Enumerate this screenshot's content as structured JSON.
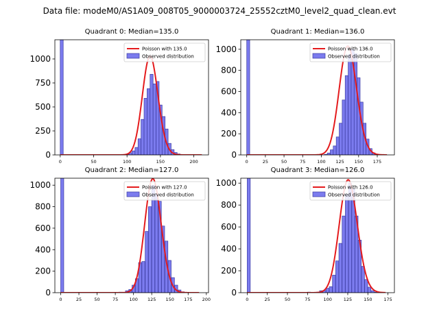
{
  "figure": {
    "suptitle": "Data file: modeM0/AS1A09_008T05_9000003724_25552cztM0_level2_quad_clean.evt"
  },
  "chart_data": [
    {
      "type": "bar",
      "title": "Quadrant 0: Median=135.0",
      "xlim": [
        -8,
        222
      ],
      "ylim": [
        0,
        1200
      ],
      "xticks": [
        0,
        50,
        100,
        150,
        200
      ],
      "yticks": [
        0,
        250,
        500,
        750,
        1000
      ],
      "bin_width": 4.5,
      "hist": [
        {
          "x": 0,
          "count": 1200
        },
        {
          "x": 94,
          "count": 3
        },
        {
          "x": 98.5,
          "count": 8
        },
        {
          "x": 103,
          "count": 22
        },
        {
          "x": 107.5,
          "count": 42
        },
        {
          "x": 112,
          "count": 78
        },
        {
          "x": 116.5,
          "count": 168
        },
        {
          "x": 121,
          "count": 370
        },
        {
          "x": 125.5,
          "count": 590
        },
        {
          "x": 130,
          "count": 690
        },
        {
          "x": 134.5,
          "count": 840
        },
        {
          "x": 139,
          "count": 740
        },
        {
          "x": 143.5,
          "count": 765
        },
        {
          "x": 148,
          "count": 520
        },
        {
          "x": 152.5,
          "count": 400
        },
        {
          "x": 157,
          "count": 270
        },
        {
          "x": 161.5,
          "count": 120
        },
        {
          "x": 166,
          "count": 55
        },
        {
          "x": 170.5,
          "count": 25
        },
        {
          "x": 175,
          "count": 10
        }
      ],
      "poisson": {
        "lambda": 135.0,
        "peak": 1030,
        "x_range": [
          0,
          212
        ]
      },
      "legend": {
        "line": "Poisson with 135.0",
        "bar": "Observed distribution",
        "position": "upper right"
      }
    },
    {
      "type": "bar",
      "title": "Quadrant 1: Median=136.0",
      "xlim": [
        -8,
        198
      ],
      "ylim": [
        0,
        1090
      ],
      "xticks": [
        0,
        25,
        50,
        75,
        100,
        125,
        150,
        175
      ],
      "yticks": [
        0,
        200,
        400,
        600,
        800,
        1000
      ],
      "bin_width": 4.0,
      "hist": [
        {
          "x": 0,
          "count": 1090
        },
        {
          "x": 104,
          "count": 5
        },
        {
          "x": 108,
          "count": 18
        },
        {
          "x": 112,
          "count": 48
        },
        {
          "x": 116,
          "count": 85
        },
        {
          "x": 120,
          "count": 170
        },
        {
          "x": 124,
          "count": 300
        },
        {
          "x": 128,
          "count": 520
        },
        {
          "x": 132,
          "count": 750
        },
        {
          "x": 136,
          "count": 950
        },
        {
          "x": 140,
          "count": 1000
        },
        {
          "x": 144,
          "count": 960
        },
        {
          "x": 148,
          "count": 730
        },
        {
          "x": 152,
          "count": 500
        },
        {
          "x": 156,
          "count": 300
        },
        {
          "x": 160,
          "count": 150
        },
        {
          "x": 164,
          "count": 60
        },
        {
          "x": 168,
          "count": 20
        },
        {
          "x": 172,
          "count": 6
        }
      ],
      "poisson": {
        "lambda": 136.0,
        "peak": 1030,
        "x_range": [
          0,
          188
        ]
      },
      "legend": {
        "line": "Poisson with 136.0",
        "bar": "Observed distribution",
        "position": "upper right"
      }
    },
    {
      "type": "bar",
      "title": "Quadrant 2: Median=127.0",
      "xlim": [
        -8,
        203
      ],
      "ylim": [
        0,
        1065
      ],
      "xticks": [
        0,
        25,
        50,
        75,
        100,
        125,
        150,
        175,
        200
      ],
      "yticks": [
        0,
        200,
        400,
        600,
        800,
        1000
      ],
      "bin_width": 4.2,
      "hist": [
        {
          "x": 0,
          "count": 1065
        },
        {
          "x": 80,
          "count": 5
        },
        {
          "x": 84.5,
          "count": 3
        },
        {
          "x": 89,
          "count": 18
        },
        {
          "x": 93.5,
          "count": 30
        },
        {
          "x": 98,
          "count": 70
        },
        {
          "x": 102.5,
          "count": 130
        },
        {
          "x": 107,
          "count": 280
        },
        {
          "x": 111.5,
          "count": 290
        },
        {
          "x": 116,
          "count": 570
        },
        {
          "x": 120.5,
          "count": 800
        },
        {
          "x": 125,
          "count": 1000
        },
        {
          "x": 129.5,
          "count": 920
        },
        {
          "x": 134,
          "count": 850
        },
        {
          "x": 138.5,
          "count": 620
        },
        {
          "x": 143,
          "count": 480
        },
        {
          "x": 147.5,
          "count": 300
        },
        {
          "x": 152,
          "count": 140
        },
        {
          "x": 156.5,
          "count": 70
        },
        {
          "x": 161,
          "count": 25
        },
        {
          "x": 165.5,
          "count": 8
        }
      ],
      "poisson": {
        "lambda": 127.0,
        "peak": 1060,
        "x_range": [
          0,
          190
        ]
      },
      "legend": {
        "line": "Poisson with 127.0",
        "bar": "Observed distribution",
        "position": "upper right"
      }
    },
    {
      "type": "bar",
      "title": "Quadrant 3: Median=126.0",
      "xlim": [
        -8,
        183
      ],
      "ylim": [
        0,
        1045
      ],
      "xticks": [
        0,
        25,
        50,
        75,
        100,
        125,
        150,
        175
      ],
      "yticks": [
        0,
        200,
        400,
        600,
        800,
        1000
      ],
      "bin_width": 3.8,
      "hist": [
        {
          "x": 0,
          "count": 1045
        },
        {
          "x": 75,
          "count": 5
        },
        {
          "x": 86,
          "count": 5
        },
        {
          "x": 90,
          "count": 18
        },
        {
          "x": 94,
          "count": 20
        },
        {
          "x": 98,
          "count": 40
        },
        {
          "x": 102,
          "count": 55
        },
        {
          "x": 106,
          "count": 160
        },
        {
          "x": 110,
          "count": 290
        },
        {
          "x": 114,
          "count": 450
        },
        {
          "x": 118,
          "count": 700
        },
        {
          "x": 122,
          "count": 900
        },
        {
          "x": 126,
          "count": 1000
        },
        {
          "x": 130,
          "count": 950
        },
        {
          "x": 134,
          "count": 700
        },
        {
          "x": 138,
          "count": 480
        },
        {
          "x": 142,
          "count": 240
        },
        {
          "x": 146,
          "count": 120
        },
        {
          "x": 150,
          "count": 50
        },
        {
          "x": 154,
          "count": 18
        },
        {
          "x": 158,
          "count": 5
        }
      ],
      "poisson": {
        "lambda": 126.0,
        "peak": 1030,
        "x_range": [
          0,
          172
        ]
      },
      "legend": {
        "line": "Poisson with 126.0",
        "bar": "Observed distribution",
        "position": "upper right"
      }
    }
  ],
  "colors": {
    "bar_fill": "#7b7bee",
    "bar_edge": "#3b3ba0",
    "poisson_line": "#e41a1c",
    "axis": "#000000"
  }
}
